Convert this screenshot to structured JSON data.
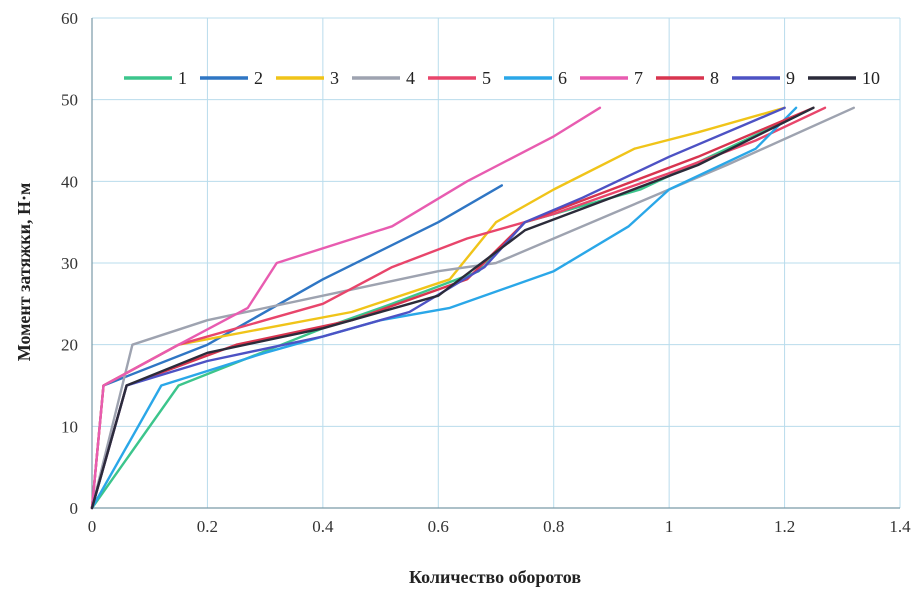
{
  "chart_data": {
    "type": "line",
    "xlabel": "Количество оборотов",
    "ylabel": "Момент затяжки, Н·м",
    "xlim": [
      0,
      1.4
    ],
    "ylim": [
      0,
      60
    ],
    "x_ticks": [
      0,
      0.2,
      0.4,
      0.6,
      0.8,
      1,
      1.2,
      1.4
    ],
    "x_tick_labels": [
      "0",
      "0.2",
      "0.4",
      "0.6",
      "0.8",
      "1",
      "1.2",
      "1.4"
    ],
    "y_ticks": [
      0,
      10,
      20,
      30,
      40,
      50,
      60
    ],
    "y_tick_labels": [
      "0",
      "10",
      "20",
      "30",
      "40",
      "50",
      "60"
    ],
    "grid": true,
    "legend_position": "top",
    "series": [
      {
        "name": "1",
        "color": "#3cc58c",
        "x": [
          0,
          0.15,
          0.4,
          0.52,
          0.67,
          0.75,
          0.95,
          1.1,
          1.25
        ],
        "y": [
          0,
          15,
          22,
          25,
          29,
          35,
          39,
          44,
          49
        ]
      },
      {
        "name": "2",
        "color": "#2f76c4",
        "x": [
          0,
          0.02,
          0.2,
          0.4,
          0.6,
          0.71
        ],
        "y": [
          0,
          15,
          20,
          28,
          35,
          39.5
        ]
      },
      {
        "name": "3",
        "color": "#f0c419",
        "x": [
          0,
          0.02,
          0.15,
          0.3,
          0.45,
          0.62,
          0.7,
          0.8,
          0.94,
          1.05,
          1.2
        ],
        "y": [
          0,
          15,
          20,
          22,
          24,
          28,
          35,
          39,
          44,
          46,
          49
        ]
      },
      {
        "name": "4",
        "color": "#9ea3b0",
        "x": [
          0,
          0.07,
          0.2,
          0.4,
          0.6,
          0.7,
          0.9,
          1.1,
          1.32
        ],
        "y": [
          0,
          20,
          23,
          26,
          29,
          30,
          36,
          42,
          49
        ]
      },
      {
        "name": "5",
        "color": "#e8456b",
        "x": [
          0,
          0.02,
          0.15,
          0.3,
          0.4,
          0.52,
          0.65,
          0.8,
          1.0,
          1.15,
          1.27
        ],
        "y": [
          0,
          15,
          20,
          23,
          25,
          29.5,
          33,
          36,
          41,
          45,
          49
        ]
      },
      {
        "name": "6",
        "color": "#2aa7e8",
        "x": [
          0,
          0.12,
          0.3,
          0.5,
          0.62,
          0.8,
          0.93,
          1.0,
          1.15,
          1.22
        ],
        "y": [
          0,
          15,
          19,
          23,
          24.5,
          29,
          34.5,
          39,
          44,
          49
        ]
      },
      {
        "name": "7",
        "color": "#e85cb0",
        "x": [
          0,
          0.02,
          0.15,
          0.27,
          0.32,
          0.52,
          0.65,
          0.8,
          0.88
        ],
        "y": [
          0,
          15,
          20,
          24.5,
          30,
          34.5,
          40,
          45.5,
          49
        ]
      },
      {
        "name": "8",
        "color": "#d8344f",
        "x": [
          0,
          0.06,
          0.25,
          0.45,
          0.65,
          0.75,
          0.9,
          1.05,
          1.25
        ],
        "y": [
          0,
          15,
          20,
          23,
          28,
          35,
          39,
          43,
          49
        ]
      },
      {
        "name": "9",
        "color": "#4d52c4",
        "x": [
          0,
          0.06,
          0.2,
          0.4,
          0.55,
          0.68,
          0.75,
          0.85,
          1.0,
          1.2
        ],
        "y": [
          0,
          15,
          18,
          21,
          24,
          29.5,
          35,
          38,
          43,
          49
        ]
      },
      {
        "name": "10",
        "color": "#2b2b3a",
        "x": [
          0,
          0.06,
          0.2,
          0.4,
          0.6,
          0.75,
          0.9,
          1.05,
          1.25
        ],
        "y": [
          0,
          15,
          19,
          22,
          26,
          34,
          38,
          42,
          49
        ]
      }
    ]
  }
}
